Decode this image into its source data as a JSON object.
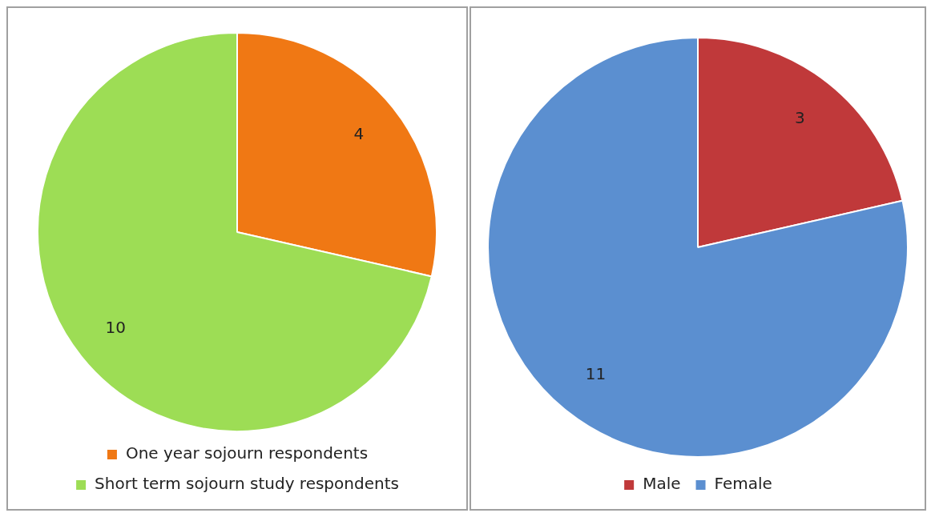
{
  "chart_data": [
    {
      "type": "pie",
      "categories": [
        "One year sojourn respondents",
        "Short term sojourn study respondents"
      ],
      "values": [
        4,
        10
      ],
      "colors": [
        "#f07814",
        "#9ddd55"
      ],
      "data_labels": true,
      "legend": "bottom"
    },
    {
      "type": "pie",
      "categories": [
        "Male",
        "Female"
      ],
      "values": [
        3,
        11
      ],
      "colors": [
        "#c0393a",
        "#5b8fd0"
      ],
      "data_labels": true,
      "legend": "bottom"
    }
  ]
}
